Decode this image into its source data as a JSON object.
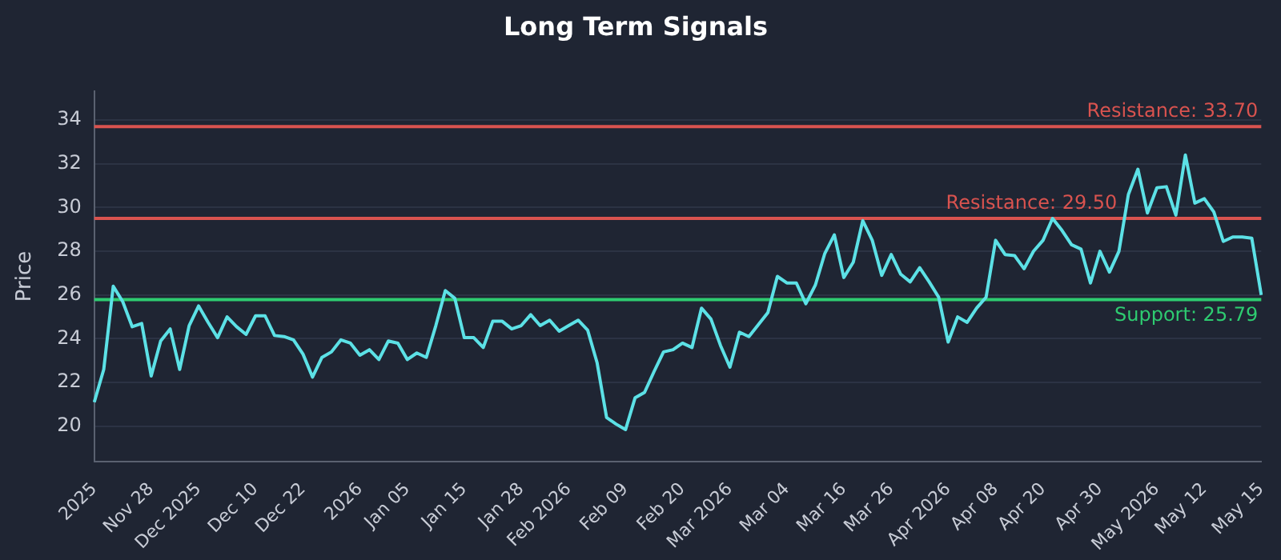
{
  "chart_data": {
    "type": "line",
    "title": "Long Term Signals",
    "ylabel": "Price",
    "categories": [
      "2025",
      null,
      null,
      null,
      null,
      null,
      "Nov 28",
      null,
      null,
      null,
      null,
      "Dec 2025",
      null,
      null,
      null,
      null,
      null,
      "Dec 10",
      null,
      null,
      null,
      null,
      "Dec 22",
      null,
      null,
      null,
      null,
      null,
      "2026",
      null,
      null,
      null,
      null,
      "Jan 05",
      null,
      null,
      null,
      null,
      null,
      "Jan 15",
      null,
      null,
      null,
      null,
      null,
      "Jan 28",
      null,
      null,
      null,
      null,
      "Feb 2026",
      null,
      null,
      null,
      null,
      null,
      "Feb 09",
      null,
      null,
      null,
      null,
      null,
      "Feb 20",
      null,
      null,
      null,
      null,
      "Mar 2026",
      null,
      null,
      null,
      null,
      null,
      "Mar 04",
      null,
      null,
      null,
      null,
      null,
      "Mar 16",
      null,
      null,
      null,
      null,
      "Mar 26",
      null,
      null,
      null,
      null,
      null,
      "Apr 2026",
      null,
      null,
      null,
      null,
      "Apr 08",
      null,
      null,
      null,
      null,
      "Apr 20",
      null,
      null,
      null,
      null,
      null,
      "Apr 30",
      null,
      null,
      null,
      null,
      null,
      "May 2026",
      null,
      null,
      null,
      null,
      "May 12",
      null,
      null,
      null,
      null,
      null,
      "May 15"
    ],
    "series": [
      {
        "color": "#5ce1e6",
        "values": [
          21.1,
          22.6,
          26.4,
          25.7,
          24.55,
          24.7,
          22.3,
          23.9,
          24.45,
          22.6,
          24.6,
          25.5,
          24.75,
          24.05,
          25.0,
          24.55,
          24.2,
          25.05,
          25.05,
          24.15,
          24.1,
          23.95,
          23.3,
          22.25,
          23.15,
          23.4,
          23.95,
          23.8,
          23.25,
          23.5,
          23.05,
          23.9,
          23.8,
          23.05,
          23.35,
          23.15,
          24.6,
          26.2,
          25.85,
          24.05,
          24.05,
          23.6,
          24.8,
          24.8,
          24.45,
          24.6,
          25.1,
          24.6,
          24.85,
          24.35,
          24.6,
          24.85,
          24.4,
          22.9,
          20.4,
          20.1,
          19.85,
          21.3,
          21.55,
          22.5,
          23.4,
          23.5,
          23.8,
          23.6,
          25.4,
          24.9,
          23.7,
          22.7,
          24.3,
          24.1,
          24.65,
          25.2,
          26.85,
          26.55,
          26.55,
          25.6,
          26.45,
          27.9,
          28.75,
          26.8,
          27.5,
          29.4,
          28.5,
          26.9,
          27.85,
          26.95,
          26.6,
          27.25,
          26.6,
          25.9,
          23.85,
          25.0,
          24.75,
          25.4,
          25.9,
          28.5,
          27.85,
          27.8,
          27.2,
          28.0,
          28.5,
          29.5,
          28.95,
          28.3,
          28.1,
          26.55,
          28.0,
          27.05,
          28.0,
          30.6,
          31.75,
          29.75,
          30.9,
          30.95,
          29.65,
          32.4,
          30.2,
          30.4,
          29.8,
          28.45,
          28.65,
          28.65,
          28.6,
          26.0
        ]
      }
    ],
    "ylim": [
      18.4,
      35.3
    ],
    "yticks": [
      20,
      22,
      24,
      26,
      28,
      30,
      32,
      34
    ],
    "grid": "y",
    "legend": false,
    "marker": "none",
    "line_style": "solid",
    "ref_lines": [
      {
        "axis": "y",
        "value": 33.7,
        "label": "Resistance: 33.70",
        "color": "#d9534f"
      },
      {
        "axis": "y",
        "value": 29.5,
        "label": "Resistance: 29.50",
        "color": "#d9534f"
      },
      {
        "axis": "y",
        "value": 25.79,
        "label": "Support: 25.79",
        "color": "#2ecc71"
      }
    ]
  }
}
